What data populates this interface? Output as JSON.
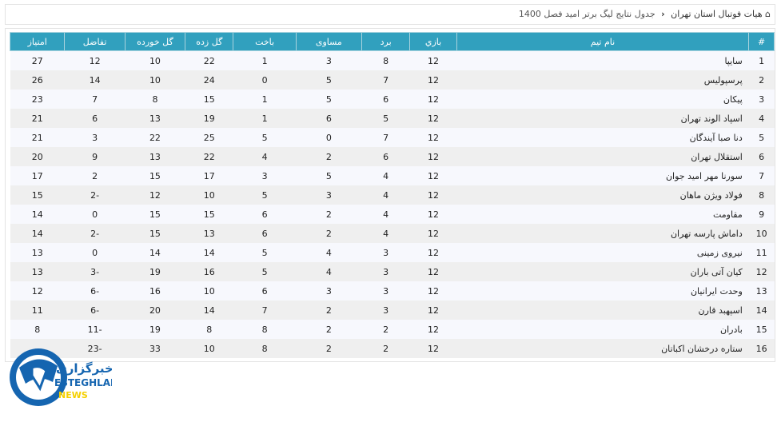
{
  "breadcrumb": {
    "home_icon": "home-icon",
    "root": "هیات فوتبال استان تهران",
    "separator_icon": "chevron-left-icon",
    "current": "جدول نتایج لیگ برتر امید فصل 1400"
  },
  "table": {
    "headers": [
      "#",
      "نام تیم",
      "بازي",
      "برد",
      "مساوی",
      "باخت",
      "گل زده",
      "گل خورده",
      "تفاضل",
      "امتیاز"
    ],
    "rows": [
      [
        "1",
        "سایپا",
        "12",
        "8",
        "3",
        "1",
        "22",
        "10",
        "12",
        "27"
      ],
      [
        "2",
        "پرسپولیس",
        "12",
        "7",
        "5",
        "0",
        "24",
        "10",
        "14",
        "26"
      ],
      [
        "3",
        "پیکان",
        "12",
        "6",
        "5",
        "1",
        "15",
        "8",
        "7",
        "23"
      ],
      [
        "4",
        "اسپاد الوند تهران",
        "12",
        "5",
        "6",
        "1",
        "19",
        "13",
        "6",
        "21"
      ],
      [
        "5",
        "دنا صبا آیندگان",
        "12",
        "7",
        "0",
        "5",
        "25",
        "22",
        "3",
        "21"
      ],
      [
        "6",
        "استقلال تهران",
        "12",
        "6",
        "2",
        "4",
        "22",
        "13",
        "9",
        "20"
      ],
      [
        "7",
        "سورنا مهر امید جوان",
        "12",
        "4",
        "5",
        "3",
        "17",
        "15",
        "2",
        "17"
      ],
      [
        "8",
        "فولاد ویژن ماهان",
        "12",
        "4",
        "3",
        "5",
        "10",
        "12",
        "-2",
        "15"
      ],
      [
        "9",
        "مقاومت",
        "12",
        "4",
        "2",
        "6",
        "15",
        "15",
        "0",
        "14"
      ],
      [
        "10",
        "داماش پارسه تهران",
        "12",
        "4",
        "2",
        "6",
        "13",
        "15",
        "-2",
        "14"
      ],
      [
        "11",
        "نیروی زمینی",
        "12",
        "3",
        "4",
        "5",
        "14",
        "14",
        "0",
        "13"
      ],
      [
        "12",
        "کیان آتی باران",
        "12",
        "3",
        "4",
        "5",
        "16",
        "19",
        "-3",
        "13"
      ],
      [
        "13",
        "وحدت ایرانیان",
        "12",
        "3",
        "3",
        "6",
        "10",
        "16",
        "-6",
        "12"
      ],
      [
        "14",
        "اسپهبد قارن",
        "12",
        "3",
        "2",
        "7",
        "14",
        "20",
        "-6",
        "11"
      ],
      [
        "15",
        "بادران",
        "12",
        "2",
        "2",
        "8",
        "8",
        "19",
        "-11",
        "8"
      ],
      [
        "16",
        "ستاره درخشان اکباتان",
        "12",
        "2",
        "2",
        "8",
        "10",
        "33",
        "-23",
        ""
      ]
    ],
    "header_color": "#31a0be"
  },
  "logo": {
    "text_fa": "خبرگزاری",
    "text_en": "ESTEGHLAL",
    "text_sub": "NEWS",
    "colors": [
      "#1565b0",
      "#f5d000"
    ]
  }
}
